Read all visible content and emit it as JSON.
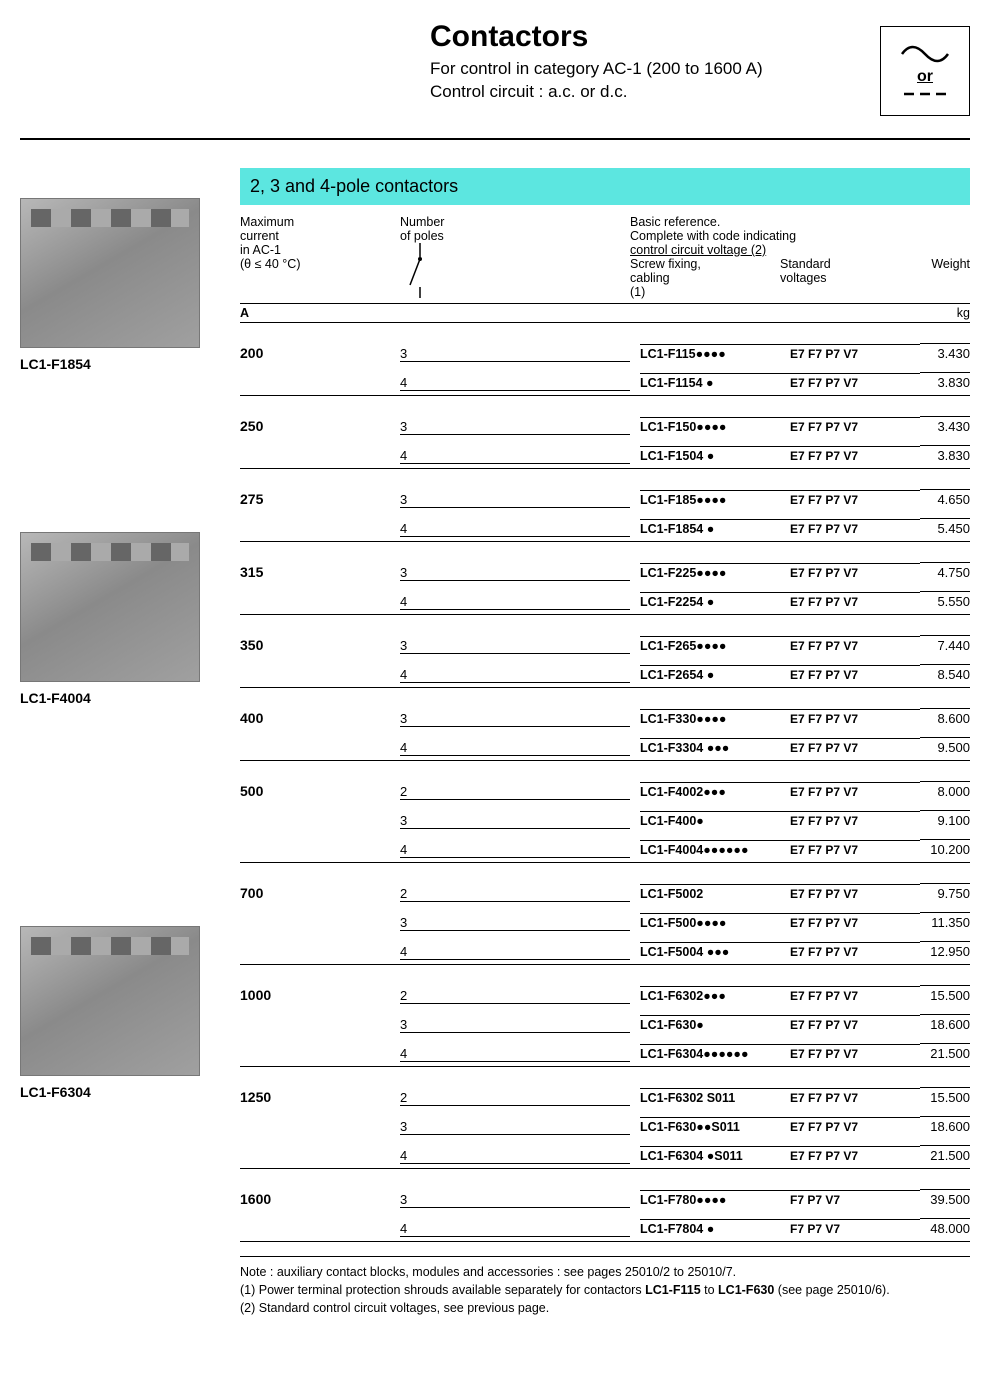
{
  "header": {
    "title": "Contactors",
    "subtitle_line1": "For control in category AC-1 (200 to 1600 A)",
    "subtitle_line2": "Control circuit : a.c. or d.c.",
    "symbol_or": "or"
  },
  "section_title": "2, 3 and 4-pole contactors",
  "products": [
    {
      "label": "LC1-F1854"
    },
    {
      "label": "LC1-F4004"
    },
    {
      "label": "LC1-F6304"
    }
  ],
  "col_headers": {
    "current_l1": "Maximum",
    "current_l2": "current",
    "current_l3": "in AC-1",
    "current_l4": "(θ ≤ 40 °C)",
    "poles_l1": "Number",
    "poles_l2": "of poles",
    "ref_l1": "Basic reference.",
    "ref_l2": "Complete with code indicating",
    "ref_l3": "control circuit voltage (2)",
    "ref_sub1_l1": "Screw fixing,",
    "ref_sub1_l2": "cabling",
    "ref_sub1_l3": "(1)",
    "ref_sub2_l1": "Standard",
    "ref_sub2_l2": "voltages",
    "weight": "Weight"
  },
  "units": {
    "current": "A",
    "weight": "kg"
  },
  "voltages_full": "E7  F7  P7  V7",
  "voltages_short": "F7  P7  V7",
  "groups": [
    {
      "current": "200",
      "rows": [
        {
          "poles": "3",
          "ref": "LC1-F115●●●●",
          "volt": "full",
          "weight": "3.430"
        },
        {
          "poles": "4",
          "ref": "LC1-F1154 ●",
          "volt": "full",
          "weight": "3.830"
        }
      ]
    },
    {
      "current": "250",
      "rows": [
        {
          "poles": "3",
          "ref": "LC1-F150●●●●",
          "volt": "full",
          "weight": "3.430"
        },
        {
          "poles": "4",
          "ref": "LC1-F1504 ●",
          "volt": "full",
          "weight": "3.830"
        }
      ]
    },
    {
      "current": "275",
      "rows": [
        {
          "poles": "3",
          "ref": "LC1-F185●●●●",
          "volt": "full",
          "weight": "4.650"
        },
        {
          "poles": "4",
          "ref": "LC1-F1854 ●",
          "volt": "full",
          "weight": "5.450"
        }
      ]
    },
    {
      "current": "315",
      "rows": [
        {
          "poles": "3",
          "ref": "LC1-F225●●●●",
          "volt": "full",
          "weight": "4.750"
        },
        {
          "poles": "4",
          "ref": "LC1-F2254 ●",
          "volt": "full",
          "weight": "5.550"
        }
      ]
    },
    {
      "current": "350",
      "rows": [
        {
          "poles": "3",
          "ref": "LC1-F265●●●●",
          "volt": "full",
          "weight": "7.440"
        },
        {
          "poles": "4",
          "ref": "LC1-F2654 ●",
          "volt": "full",
          "weight": "8.540"
        }
      ]
    },
    {
      "current": "400",
      "rows": [
        {
          "poles": "3",
          "ref": "LC1-F330●●●●",
          "volt": "full",
          "weight": "8.600"
        },
        {
          "poles": "4",
          "ref": "LC1-F3304 ●●●",
          "volt": "full",
          "weight": "9.500"
        }
      ]
    },
    {
      "current": "500",
      "rows": [
        {
          "poles": "2",
          "ref": "LC1-F4002●●●",
          "volt": "full",
          "weight": "8.000"
        },
        {
          "poles": "3",
          "ref": "LC1-F400●",
          "volt": "full",
          "weight": "9.100"
        },
        {
          "poles": "4",
          "ref": "LC1-F4004●●●●●●",
          "volt": "full",
          "weight": "10.200"
        }
      ]
    },
    {
      "current": "700",
      "rows": [
        {
          "poles": "2",
          "ref": "LC1-F5002",
          "volt": "full",
          "weight": "9.750"
        },
        {
          "poles": "3",
          "ref": "LC1-F500●●●●",
          "volt": "full",
          "weight": "11.350"
        },
        {
          "poles": "4",
          "ref": "LC1-F5004 ●●●",
          "volt": "full",
          "weight": "12.950"
        }
      ]
    },
    {
      "current": "1000",
      "rows": [
        {
          "poles": "2",
          "ref": "LC1-F6302●●●",
          "volt": "full",
          "weight": "15.500"
        },
        {
          "poles": "3",
          "ref": "LC1-F630●",
          "volt": "full",
          "weight": "18.600"
        },
        {
          "poles": "4",
          "ref": "LC1-F6304●●●●●●",
          "volt": "full",
          "weight": "21.500"
        }
      ]
    },
    {
      "current": "1250",
      "rows": [
        {
          "poles": "2",
          "ref": "LC1-F6302   S011",
          "volt": "full",
          "weight": "15.500"
        },
        {
          "poles": "3",
          "ref": "LC1-F630●●S011",
          "volt": "full",
          "weight": "18.600"
        },
        {
          "poles": "4",
          "ref": "LC1-F6304 ●S011",
          "volt": "full",
          "weight": "21.500"
        }
      ]
    },
    {
      "current": "1600",
      "rows": [
        {
          "poles": "3",
          "ref": "LC1-F780●●●●",
          "volt": "short",
          "weight": "39.500"
        },
        {
          "poles": "4",
          "ref": "LC1-F7804 ●",
          "volt": "short",
          "weight": "48.000"
        }
      ]
    }
  ],
  "notes": {
    "line1_pre": "Note : auxiliary contact blocks, modules and accessories : see pages 25010/2 to 25010/7.",
    "line2_pre": "(1) Power terminal protection shrouds available separately for contactors ",
    "line2_b1": "LC1-F115",
    "line2_mid": " to ",
    "line2_b2": "LC1-F630",
    "line2_post": " (see page 25010/6).",
    "line3": "(2) Standard control circuit voltages, see previous page."
  },
  "colors": {
    "section_bg": "#5ce6e0",
    "text": "#000000",
    "background": "#ffffff",
    "border": "#000000"
  }
}
